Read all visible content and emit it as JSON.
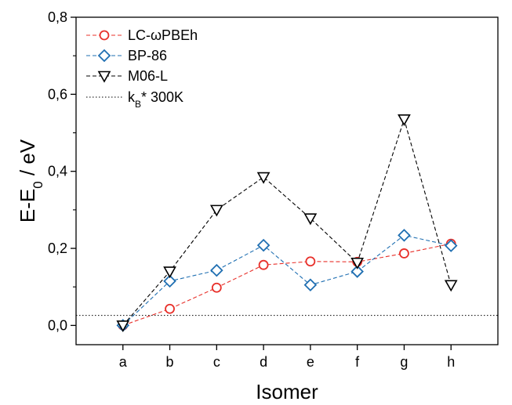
{
  "chart_data": {
    "type": "line",
    "title": "",
    "xlabel": "Isomer",
    "ylabel_main": "E-E",
    "ylabel_sub": "0",
    "ylabel_rest": " / eV",
    "categories": [
      "a",
      "b",
      "c",
      "d",
      "e",
      "f",
      "g",
      "h"
    ],
    "ylim": [
      -0.05,
      0.8
    ],
    "yticks": [
      0.0,
      0.2,
      0.4,
      0.6,
      0.8
    ],
    "ytick_labels": [
      "0,0",
      "0,2",
      "0,4",
      "0,6",
      "0,8"
    ],
    "legend_position": "top-left",
    "grid": false,
    "series": [
      {
        "name": "LC-ωPBEh",
        "color": "#e8302a",
        "marker": "circle",
        "line_style": "dashed",
        "values": [
          0.0,
          0.043,
          0.098,
          0.157,
          0.166,
          0.165,
          0.187,
          0.212
        ]
      },
      {
        "name": "BP-86",
        "color": "#1f6fb2",
        "marker": "diamond",
        "line_style": "dashed",
        "values": [
          0.0,
          0.115,
          0.143,
          0.208,
          0.105,
          0.14,
          0.234,
          0.207
        ]
      },
      {
        "name": "M06-L",
        "color": "#000000",
        "marker": "triangle-down",
        "line_style": "dashed",
        "values": [
          0.0,
          0.14,
          0.3,
          0.385,
          0.278,
          0.163,
          0.535,
          0.105
        ]
      }
    ],
    "reference_line": {
      "label_main": "k",
      "label_sub": "B",
      "label_rest": "* 300K",
      "value": 0.026,
      "color": "#000000",
      "line_style": "dotted"
    }
  }
}
